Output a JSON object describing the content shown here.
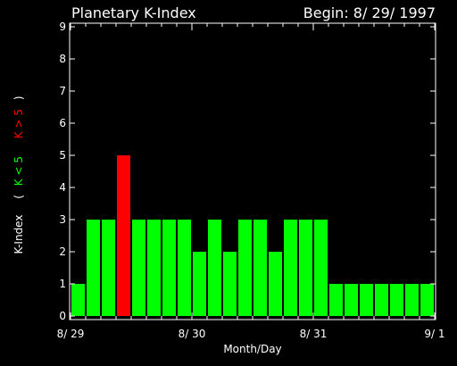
{
  "chart_data": {
    "type": "bar",
    "title": "Planetary K-Index",
    "subtitle": "Begin: 8/ 29/ 1997",
    "xlabel": "Month/Day",
    "ylabel": {
      "prefix": "K-Index",
      "open_paren": "(",
      "low_label": "K < 5",
      "high_label": "K > 5",
      "close_paren": ")"
    },
    "ylim": [
      0,
      9
    ],
    "yticks": [
      "0",
      "1",
      "2",
      "3",
      "4",
      "5",
      "6",
      "7",
      "8",
      "9"
    ],
    "xticks": [
      {
        "label": "8/ 29",
        "index": 0
      },
      {
        "label": "8/ 30",
        "index": 8
      },
      {
        "label": "8/ 31",
        "index": 16
      },
      {
        "label": "9/ 1",
        "index": 24
      }
    ],
    "threshold": 5,
    "values": [
      1,
      3,
      3,
      5,
      3,
      3,
      3,
      3,
      2,
      3,
      2,
      3,
      3,
      2,
      3,
      3,
      3,
      1,
      1,
      1,
      1,
      1,
      1,
      1
    ],
    "colors": {
      "background": "#000000",
      "axis": "#ffffff",
      "low": "#00ff00",
      "high": "#ff0000"
    }
  }
}
